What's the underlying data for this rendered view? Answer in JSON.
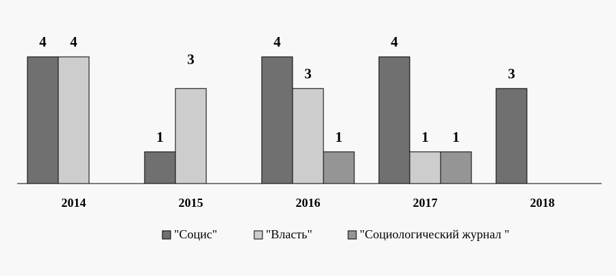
{
  "chart_data": {
    "type": "bar",
    "title": "",
    "xlabel": "",
    "ylabel": "",
    "categories": [
      "2014",
      "2015",
      "2016",
      "2017",
      "2018"
    ],
    "ylim": [
      0,
      4
    ],
    "grid": false,
    "legend_position": "bottom",
    "series": [
      {
        "name": "\"Социс\"",
        "color": "#707070",
        "values": [
          4,
          1,
          4,
          4,
          3
        ]
      },
      {
        "name": "\"Власть\"",
        "color": "#cdcdcd",
        "values": [
          4,
          3,
          3,
          1,
          null
        ]
      },
      {
        "name": "\"Социологический журнал \"",
        "color": "#959595",
        "values": [
          null,
          null,
          1,
          1,
          null
        ]
      }
    ]
  }
}
